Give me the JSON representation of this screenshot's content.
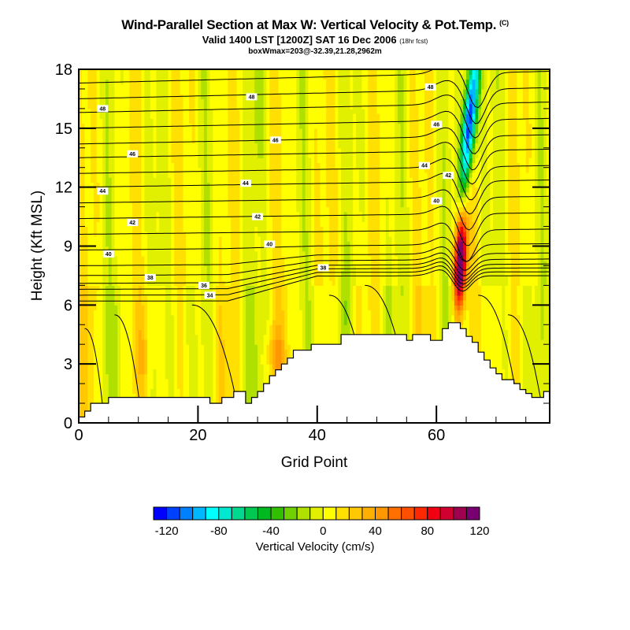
{
  "header": {
    "title": "Wind-Parallel Section at Max W: Vertical Velocity & Pot.Temp.",
    "title_tag": "(C)",
    "subtitle": "Valid 1400 LST [1200Z] SAT 16 Dec 2006",
    "subtitle_tag": "(18hr fcst)",
    "info_line": "boxWmax=203@-32.39,21.28,2962m"
  },
  "chart_data": {
    "type": "heatmap",
    "title": "Wind-Parallel Section at Max W: Vertical Velocity & Pot.Temp.",
    "xlabel": "Grid Point",
    "ylabel": "Height (Kft MSL)",
    "xlim": [
      0,
      79
    ],
    "ylim": [
      0,
      18
    ],
    "xticks": [
      0,
      20,
      40,
      60
    ],
    "xtick_labels": [
      "0",
      "20",
      "40",
      "60"
    ],
    "x_minor_step": 5,
    "yticks": [
      0,
      3,
      6,
      9,
      12,
      15,
      18
    ],
    "ytick_labels": [
      "0",
      "3",
      "6",
      "9",
      "12",
      "15",
      "18"
    ],
    "y_minor_step": 1,
    "grid": false,
    "fill_variable": "Vertical Velocity (cm/s)",
    "contour_variable": "Potential Temperature",
    "colorbar": {
      "label": "Vertical Velocity (cm/s)",
      "levels": [
        -130,
        -120,
        -110,
        -100,
        -90,
        -80,
        -70,
        -60,
        -50,
        -40,
        -30,
        -20,
        -10,
        0,
        10,
        20,
        30,
        40,
        50,
        60,
        70,
        80,
        90,
        100,
        110,
        120,
        130
      ],
      "tick_values": [
        -120,
        -80,
        -40,
        0,
        40,
        80,
        120
      ],
      "tick_labels": [
        "-120",
        "-80",
        "-40",
        "0",
        "40",
        "80",
        "120"
      ],
      "colors": [
        "#0000ff",
        "#0040ff",
        "#0080ff",
        "#00b8ff",
        "#00ffff",
        "#00e8d0",
        "#00d890",
        "#00c850",
        "#00b820",
        "#30c000",
        "#70d000",
        "#b0e000",
        "#e0f000",
        "#ffff00",
        "#ffe000",
        "#ffc800",
        "#ffb000",
        "#ff9800",
        "#ff7000",
        "#ff5000",
        "#ff2800",
        "#f00010",
        "#d00030",
        "#a00050",
        "#780070"
      ],
      "placement": "bottom"
    },
    "terrain_kft": [
      0.3,
      0.6,
      1.0,
      1.0,
      1.0,
      1.3,
      1.3,
      1.3,
      1.3,
      1.3,
      1.3,
      1.3,
      1.3,
      1.3,
      1.3,
      1.3,
      1.3,
      1.3,
      1.3,
      1.3,
      1.3,
      1.3,
      1.0,
      1.0,
      1.3,
      1.3,
      1.6,
      1.6,
      1.0,
      1.3,
      1.6,
      2.0,
      2.4,
      2.7,
      3.0,
      3.3,
      3.7,
      3.7,
      3.7,
      4.0,
      4.0,
      4.0,
      4.0,
      4.0,
      4.5,
      4.5,
      4.5,
      4.5,
      4.5,
      4.5,
      4.5,
      4.5,
      4.5,
      4.5,
      4.5,
      4.2,
      4.5,
      4.5,
      4.5,
      4.2,
      4.2,
      4.8,
      5.1,
      5.1,
      4.8,
      4.4,
      4.1,
      3.6,
      3.2,
      2.8,
      2.5,
      2.2,
      2.2,
      2.0,
      1.7,
      1.5,
      1.3,
      1.3,
      1.6,
      1.6
    ],
    "contour_labels": [
      {
        "value": "48",
        "x": 4,
        "y": 16.0
      },
      {
        "value": "46",
        "x": 9,
        "y": 13.7
      },
      {
        "value": "44",
        "x": 4,
        "y": 11.8
      },
      {
        "value": "42",
        "x": 9,
        "y": 10.2
      },
      {
        "value": "40",
        "x": 5,
        "y": 8.6
      },
      {
        "value": "38",
        "x": 12,
        "y": 7.4
      },
      {
        "value": "36",
        "x": 21,
        "y": 7.0
      },
      {
        "value": "34",
        "x": 22,
        "y": 6.5
      },
      {
        "value": "48",
        "x": 29,
        "y": 16.6
      },
      {
        "value": "46",
        "x": 33,
        "y": 14.4
      },
      {
        "value": "44",
        "x": 28,
        "y": 12.2
      },
      {
        "value": "42",
        "x": 30,
        "y": 10.5
      },
      {
        "value": "40",
        "x": 32,
        "y": 9.1
      },
      {
        "value": "38",
        "x": 41,
        "y": 7.9
      },
      {
        "value": "48",
        "x": 59,
        "y": 17.1
      },
      {
        "value": "46",
        "x": 60,
        "y": 15.2
      },
      {
        "value": "44",
        "x": 58,
        "y": 13.1
      },
      {
        "value": "42",
        "x": 62,
        "y": 12.6
      },
      {
        "value": "40",
        "x": 60,
        "y": 11.3
      }
    ],
    "features": [
      {
        "type": "downdraft",
        "description": "Strong negative vertical velocity core",
        "x_range": [
          64,
          67
        ],
        "y_range": [
          11,
          18
        ],
        "min_value": -120
      },
      {
        "type": "updraft",
        "description": "Strong positive vertical velocity core",
        "x_range": [
          63,
          65
        ],
        "y_range": [
          5,
          12
        ],
        "max_value": 130
      }
    ]
  }
}
